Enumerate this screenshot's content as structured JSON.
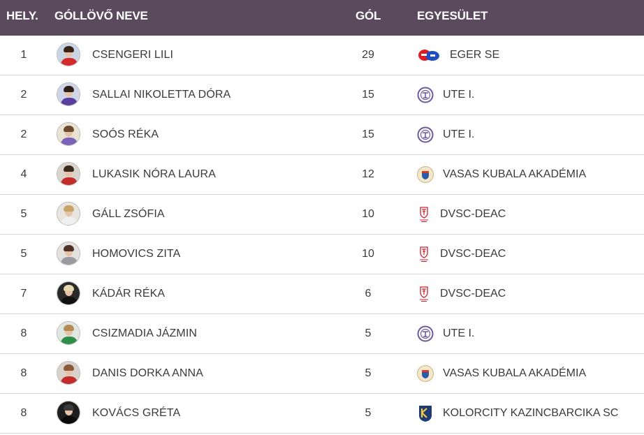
{
  "header": {
    "rank": "HELY.",
    "name": "GÓLLÖVŐ NEVE",
    "goals": "GÓL",
    "club": "EGYESÜLET"
  },
  "colors": {
    "header_bg": "#5b4a5e",
    "ute_purple": "#6b5a9e",
    "dvsc_red": "#d0202e",
    "eger_red": "#e11b22",
    "eger_blue": "#1f4fbf",
    "kazinc_navy": "#1f3b73"
  },
  "rows": [
    {
      "rank": "1",
      "name": "CSENGERI LILI",
      "goals": "29",
      "club": "EGER SE",
      "club_icon": "eger-se-logo-icon",
      "avatar": {
        "bg": "#c9d6e6",
        "hair": "#3a2418",
        "shirt": "#d42a2a"
      }
    },
    {
      "rank": "2",
      "name": "SALLAI NIKOLETTA DÓRA",
      "goals": "15",
      "club": "UTE I.",
      "club_icon": "ute-logo-icon",
      "avatar": {
        "bg": "#cfd4e8",
        "hair": "#2d2018",
        "shirt": "#5b3f9e"
      }
    },
    {
      "rank": "2",
      "name": "SOÓS RÉKA",
      "goals": "15",
      "club": "UTE I.",
      "club_icon": "ute-logo-icon",
      "avatar": {
        "bg": "#e9e4d2",
        "hair": "#6b4a30",
        "shirt": "#7a62b8"
      }
    },
    {
      "rank": "4",
      "name": "LUKASIK NÓRA LAURA",
      "goals": "12",
      "club": "VASAS KUBALA AKADÉMIA",
      "club_icon": "vasas-logo-icon",
      "avatar": {
        "bg": "#d9d4cc",
        "hair": "#3b2a1e",
        "shirt": "#c42b2b"
      }
    },
    {
      "rank": "5",
      "name": "GÁLL ZSÓFIA",
      "goals": "10",
      "club": "DVSC-DEAC",
      "club_icon": "dvsc-logo-icon",
      "avatar": {
        "bg": "#e8e4de",
        "hair": "#c8a46a",
        "shirt": "#f0f0f0"
      }
    },
    {
      "rank": "5",
      "name": "HOMOVICS ZITA",
      "goals": "10",
      "club": "DVSC-DEAC",
      "club_icon": "dvsc-logo-icon",
      "avatar": {
        "bg": "#e3e0dd",
        "hair": "#4a3326",
        "shirt": "#9a9aa0"
      }
    },
    {
      "rank": "7",
      "name": "KÁDÁR RÉKA",
      "goals": "6",
      "club": "DVSC-DEAC",
      "club_icon": "dvsc-logo-icon",
      "avatar": {
        "bg": "#2a2a2a",
        "hair": "#e5d7b0",
        "shirt": "#111111"
      }
    },
    {
      "rank": "8",
      "name": "CSIZMADIA JÁZMIN",
      "goals": "5",
      "club": "UTE I.",
      "club_icon": "ute-logo-icon",
      "avatar": {
        "bg": "#dfe8df",
        "hair": "#b58a55",
        "shirt": "#2f8f4a"
      }
    },
    {
      "rank": "8",
      "name": "DANIS DORKA ANNA",
      "goals": "5",
      "club": "VASAS KUBALA AKADÉMIA",
      "club_icon": "vasas-logo-icon",
      "avatar": {
        "bg": "#d8d2ca",
        "hair": "#8a5a3a",
        "shirt": "#c42b2b"
      }
    },
    {
      "rank": "8",
      "name": "KOVÁCS GRÉTA",
      "goals": "5",
      "club": "KOLORCITY KAZINCBARCIKA SC",
      "club_icon": "kazincbarcika-logo-icon",
      "avatar": {
        "bg": "#1e1e1e",
        "hair": "#3a3a3a",
        "shirt": "#0a0a0a"
      }
    }
  ]
}
